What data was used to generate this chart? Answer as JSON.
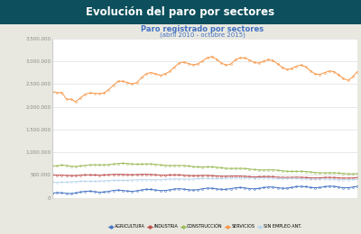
{
  "title": "Evolución del paro por sectores",
  "subtitle": "Paro registrado por sectores",
  "subtitle2": "(abril 2010 - octubre 2015)",
  "title_bg": "#0d4f5c",
  "title_color": "#ffffff",
  "chart_bg": "#ffffff",
  "outer_bg": "#e8e8e0",
  "ylim": [
    0,
    3500000
  ],
  "yticks": [
    0,
    500000,
    1000000,
    1500000,
    2000000,
    2500000,
    3000000,
    3500000
  ],
  "ytick_labels": [
    "0",
    "500.000",
    "1.000.000",
    "1.500.000",
    "2.000.000",
    "2.500.000",
    "3.000.000",
    "3.500.000"
  ],
  "n_points": 66,
  "legend_labels": [
    "AGRICULTURA",
    "INDUSTRIA",
    "CONSTRUCCIÓN",
    "SERVICIOS",
    "SIN EMPLEO ANT."
  ],
  "line_colors": [
    "#4472c4",
    "#c0504d",
    "#9bbb59",
    "#f79646",
    "#bdd7ee"
  ],
  "title_fontsize": 8.5,
  "subtitle_fontsize": 6,
  "subtitle2_fontsize": 5,
  "tick_fontsize": 4,
  "legend_fontsize": 3.5
}
